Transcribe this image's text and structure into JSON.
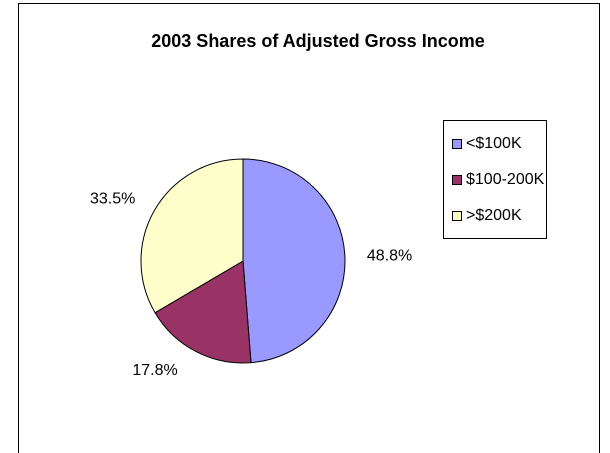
{
  "chart_data": {
    "type": "pie",
    "title": "2003 Shares of Adjusted Gross Income",
    "categories": [
      "<$100K",
      "$100-200K",
      ">$200K"
    ],
    "values": [
      48.8,
      17.8,
      33.5
    ],
    "value_labels": [
      "48.8%",
      "17.8%",
      "33.5%"
    ],
    "colors": [
      "#9999ff",
      "#993366",
      "#ffffcc"
    ],
    "legend": "right"
  }
}
